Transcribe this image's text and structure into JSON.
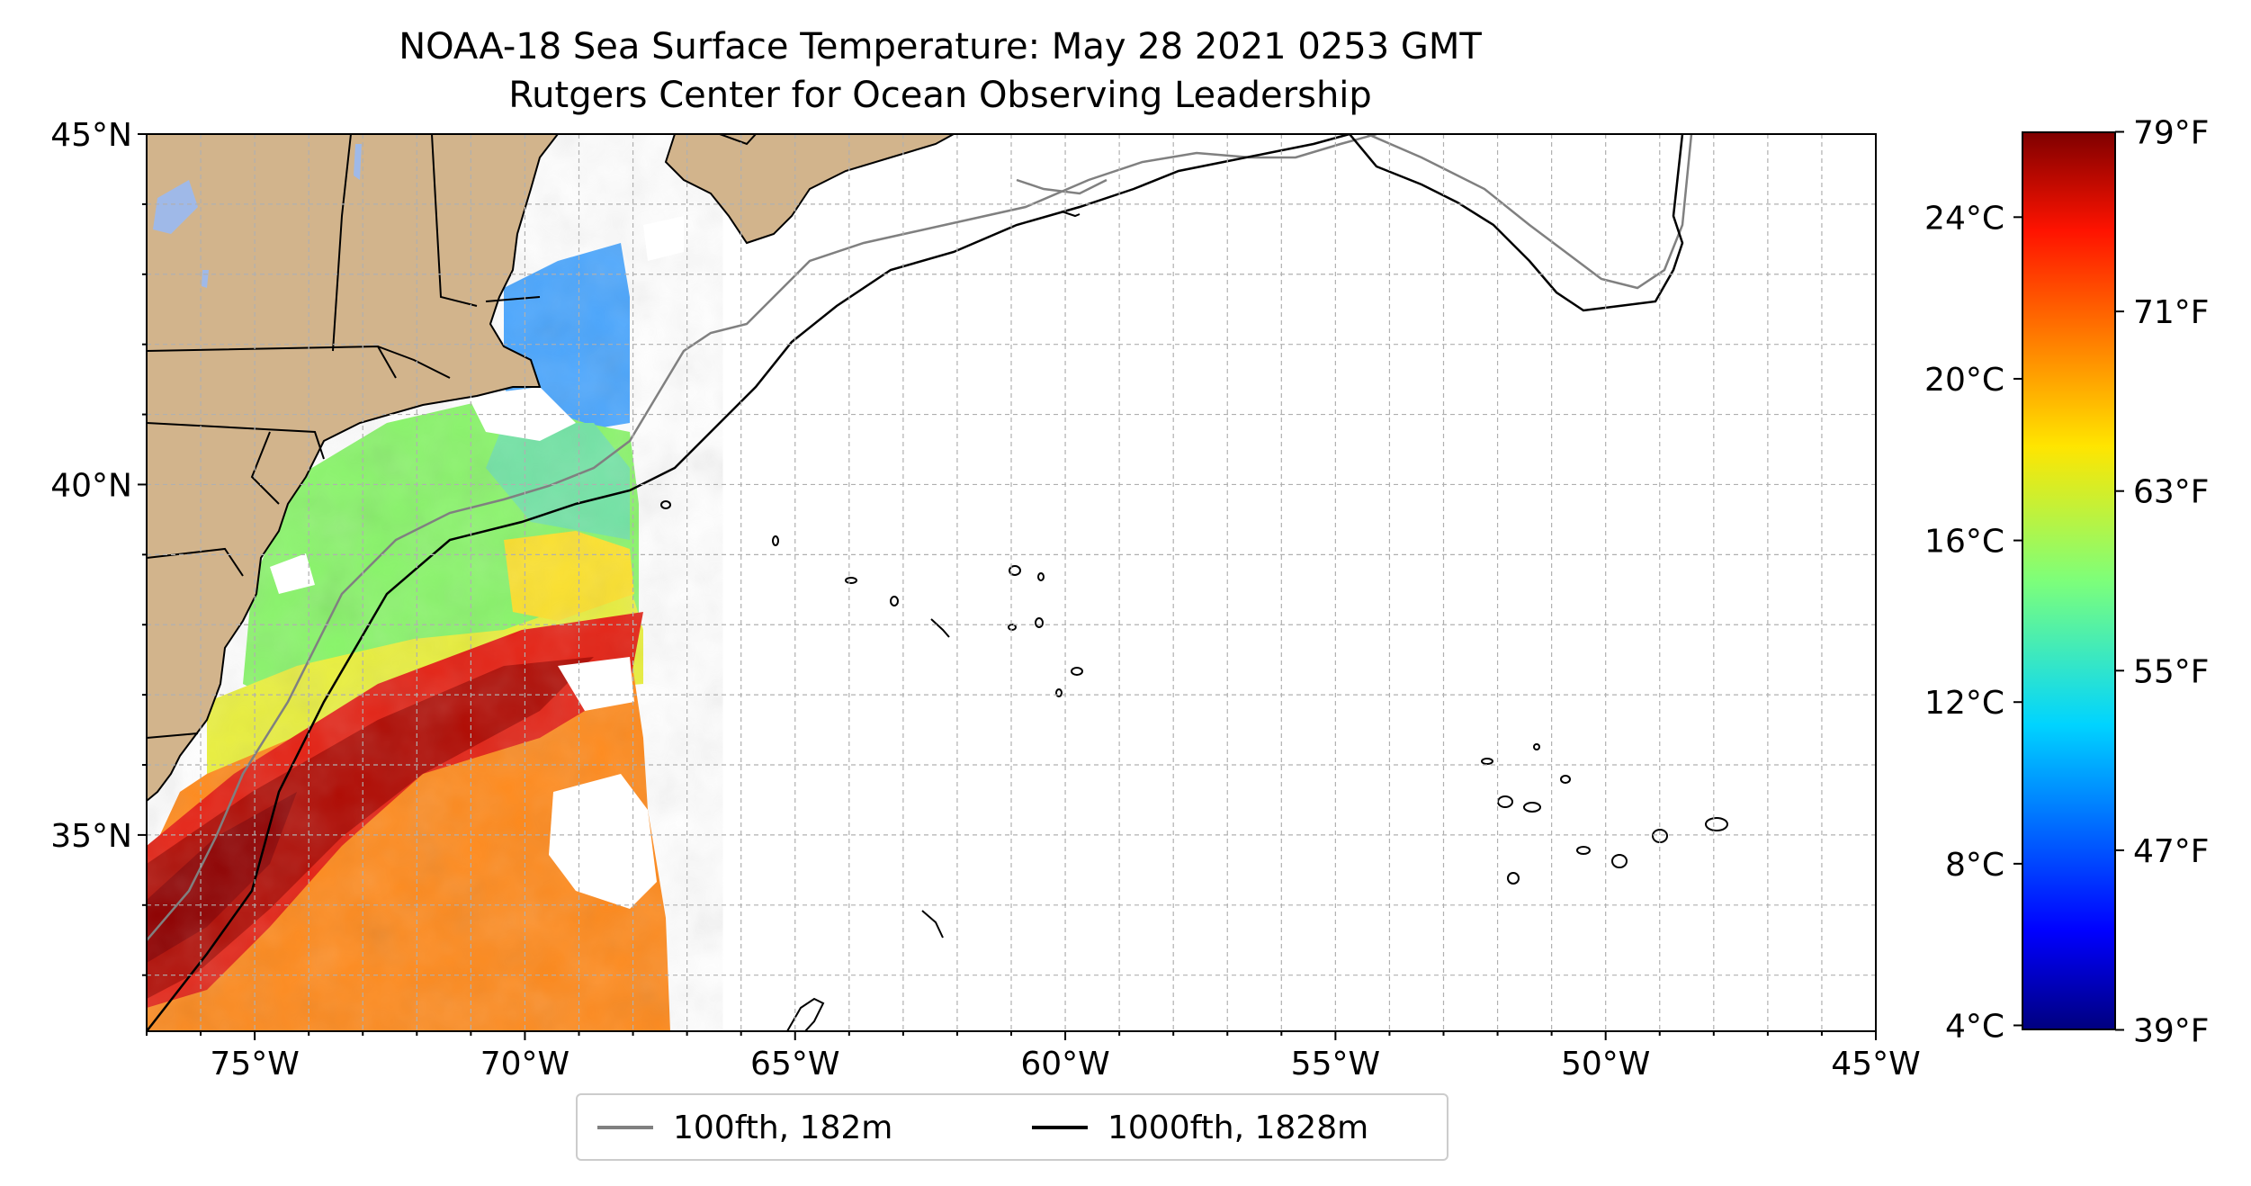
{
  "title": {
    "line1": "NOAA-18 Sea Surface Temperature: May 28 2021 0253 GMT",
    "line2": "Rutgers Center for Ocean Observing Leadership"
  },
  "map": {
    "lon_range": [
      -77,
      -45
    ],
    "lat_range": [
      32.2,
      45
    ],
    "x_ticks": [
      {
        "lon": -75,
        "label": "75°W"
      },
      {
        "lon": -70,
        "label": "70°W"
      },
      {
        "lon": -65,
        "label": "65°W"
      },
      {
        "lon": -60,
        "label": "60°W"
      },
      {
        "lon": -55,
        "label": "55°W"
      },
      {
        "lon": -50,
        "label": "50°W"
      },
      {
        "lon": -45,
        "label": "45°W"
      }
    ],
    "y_ticks": [
      {
        "lat": 45,
        "label": "45°N"
      },
      {
        "lat": 40,
        "label": "40°N"
      },
      {
        "lat": 35,
        "label": "35°N"
      }
    ],
    "grid": true,
    "colors": {
      "land": "#d2b48c",
      "lakes": "#9fb9e8",
      "isobath_100fth": "#808080",
      "isobath_1000fth": "#000000"
    }
  },
  "colorbar": {
    "colormap": "jet",
    "celsius_range": [
      3.9,
      26.1
    ],
    "celsius_ticks": [
      {
        "value": 24,
        "label": "24°C"
      },
      {
        "value": 20,
        "label": "20°C"
      },
      {
        "value": 16,
        "label": "16°C"
      },
      {
        "value": 12,
        "label": "12°C"
      },
      {
        "value": 8,
        "label": "8°C"
      },
      {
        "value": 4,
        "label": "4°C"
      }
    ],
    "fahrenheit_ticks": [
      {
        "value": 79,
        "label": "79°F"
      },
      {
        "value": 71,
        "label": "71°F"
      },
      {
        "value": 63,
        "label": "63°F"
      },
      {
        "value": 55,
        "label": "55°F"
      },
      {
        "value": 47,
        "label": "47°F"
      },
      {
        "value": 39,
        "label": "39°F"
      }
    ]
  },
  "legend": {
    "placement": "bottom-center",
    "items": [
      {
        "label": "100fth, 182m",
        "color": "#808080"
      },
      {
        "label": "1000fth, 1828m",
        "color": "#000000"
      }
    ]
  }
}
